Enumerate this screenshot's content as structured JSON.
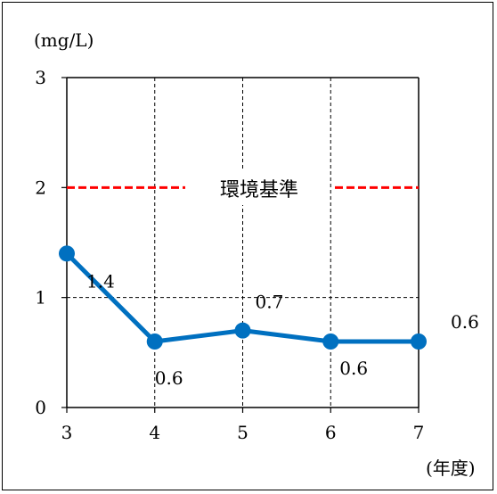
{
  "chart_data": {
    "type": "line",
    "unit_label": "(mg/L)",
    "x_unit_label": "(年度)",
    "categories": [
      "3",
      "4",
      "5",
      "6",
      "7"
    ],
    "y_ticks": [
      "0",
      "1",
      "2",
      "3"
    ],
    "ylim": [
      0,
      3
    ],
    "grid": true,
    "series": [
      {
        "values": [
          1.4,
          0.6,
          0.7,
          0.6,
          0.6
        ],
        "data_labels": [
          "1.4",
          "0.6",
          "0.7",
          "0.6",
          "0.6"
        ],
        "color": "#0070C0"
      }
    ],
    "reference_line": {
      "label": "環境基準",
      "value": 2,
      "color": "#FF0000"
    }
  }
}
